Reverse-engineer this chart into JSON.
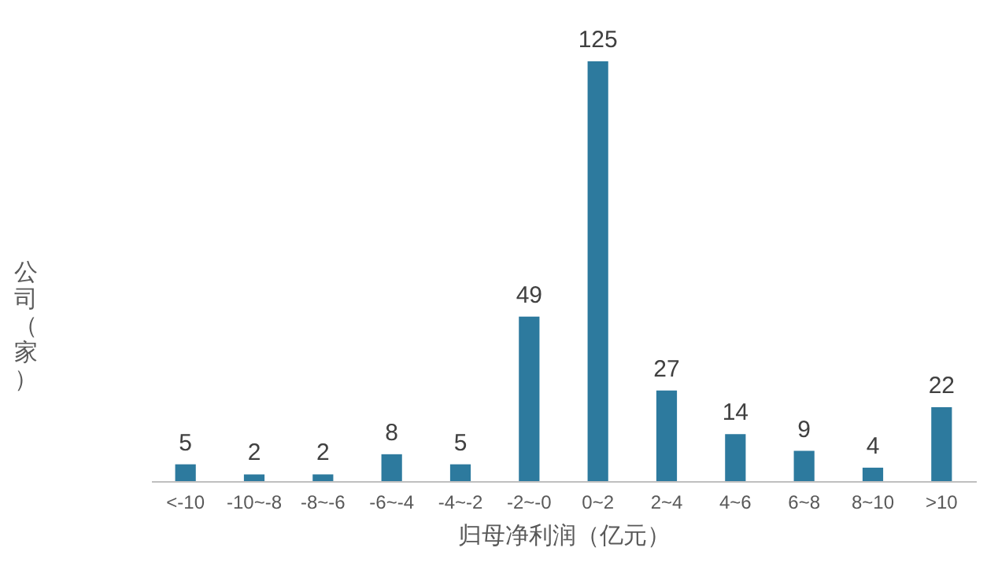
{
  "chart_data": {
    "type": "bar",
    "xlabel": "归母净利润（亿元）",
    "ylabel": "公司（家）",
    "categories": [
      "<-10",
      "-10~-8",
      "-8~-6",
      "-6~-4",
      "-4~-2",
      "-2~-0",
      "0~2",
      "2~4",
      "4~6",
      "6~8",
      "8~10",
      ">10"
    ],
    "values": [
      5,
      2,
      2,
      8,
      5,
      49,
      125,
      27,
      14,
      9,
      4,
      22
    ],
    "color": "#2d7a9e",
    "data_labels": true
  }
}
